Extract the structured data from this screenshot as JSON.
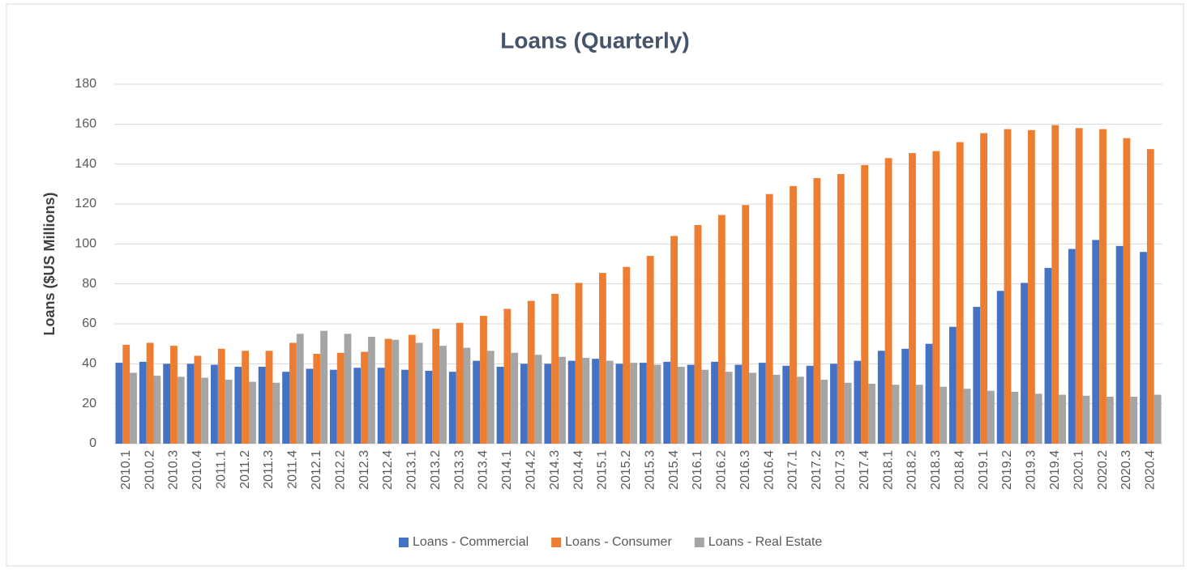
{
  "chart_data": {
    "type": "bar",
    "title": "Loans (Quarterly)",
    "y_label": "Loans ($US Millions)",
    "categories": [
      "2010.1",
      "2010.2",
      "2010.3",
      "2010.4",
      "2011.1",
      "2011.2",
      "2011.3",
      "2011.4",
      "2012.1",
      "2012.2",
      "2012.3",
      "2012.4",
      "2013.1",
      "2013.2",
      "2013.3",
      "2013.4",
      "2014.1",
      "2014.2",
      "2014.3",
      "2014.4",
      "2015.1",
      "2015.2",
      "2015.3",
      "2015.4",
      "2016.1",
      "2016.2",
      "2016.3",
      "2016.4",
      "2017.1",
      "2017.2",
      "2017.3",
      "2017.4",
      "2018.1",
      "2018.2",
      "2018.3",
      "2018.4",
      "2019.1",
      "2019.2",
      "2019.3",
      "2019.4",
      "2020.1",
      "2020.2",
      "2020.3",
      "2020.4"
    ],
    "series": [
      {
        "name": "Loans - Commercial",
        "color": "#4472c4",
        "values": [
          40.5,
          41,
          40,
          40,
          39.5,
          38.5,
          38.5,
          36,
          37.5,
          37,
          38,
          38,
          37,
          36.5,
          36,
          41.5,
          38.5,
          40,
          40,
          41.5,
          42.5,
          40,
          40.5,
          41,
          39.5,
          41,
          39.5,
          40.5,
          39,
          39,
          40,
          41.5,
          46.5,
          47.5,
          50,
          58.5,
          68.5,
          76.5,
          80.5,
          88,
          97.5,
          102,
          99,
          96
        ]
      },
      {
        "name": "Loans - Consumer",
        "color": "#ed7d31",
        "values": [
          49.5,
          50.5,
          49,
          44,
          47.5,
          46.5,
          46.5,
          50.5,
          45,
          45.5,
          46,
          52.5,
          54.5,
          57.5,
          60.5,
          64,
          67.5,
          71.5,
          75,
          80.5,
          85.5,
          88.5,
          94,
          104,
          109.5,
          114.5,
          119.5,
          125,
          129,
          133,
          135,
          139.5,
          143,
          145.5,
          146.5,
          151,
          155.5,
          157.5,
          157,
          159.5,
          158,
          157.5,
          153,
          147.5
        ]
      },
      {
        "name": "Loans - Real Estate",
        "color": "#a5a5a5",
        "values": [
          35.5,
          34,
          33.5,
          33,
          32,
          31,
          30.5,
          55,
          56.5,
          55,
          53.5,
          52,
          50.5,
          49,
          48,
          46.5,
          45.5,
          44.5,
          43.5,
          43,
          41.5,
          40.5,
          39.5,
          38.5,
          37,
          36,
          35.5,
          34.5,
          33.5,
          32,
          30.5,
          30,
          29.5,
          29.5,
          28.5,
          27.5,
          26.5,
          26,
          25,
          24.5,
          24,
          23.5,
          23.5,
          24.5
        ]
      }
    ],
    "ylim": [
      0,
      180
    ],
    "yticks": [
      0,
      20,
      40,
      60,
      80,
      100,
      120,
      140,
      160,
      180
    ],
    "grid": true,
    "legend": "bottom"
  }
}
